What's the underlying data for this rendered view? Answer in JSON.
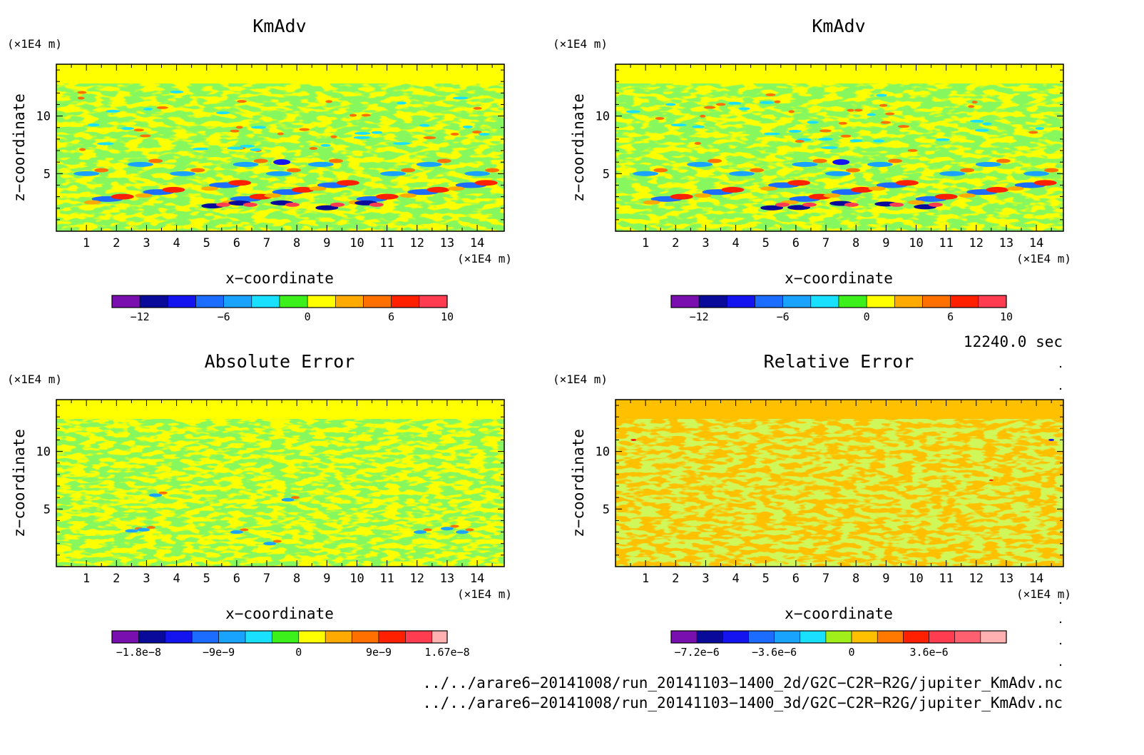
{
  "panels": [
    {
      "title": "KmAdv",
      "unit_y": "(×1E4 m)",
      "unit_x": "(×1E4 m)",
      "xlabel": "x−coordinate",
      "ylabel": "z−coordinate",
      "colorbar_ticks": [
        "−12",
        "−6",
        "0",
        "6",
        "10"
      ]
    },
    {
      "title": "KmAdv",
      "unit_y": "(×1E4 m)",
      "unit_x": "(×1E4 m)",
      "xlabel": "x−coordinate",
      "ylabel": "z−coordinate",
      "colorbar_ticks": [
        "−12",
        "−6",
        "0",
        "6",
        "10"
      ]
    },
    {
      "title": "Absolute Error",
      "unit_y": "(×1E4 m)",
      "unit_x": "(×1E4 m)",
      "xlabel": "x−coordinate",
      "ylabel": "z−coordinate",
      "colorbar_ticks": [
        "−1.8e−8",
        "−9e−9",
        "0",
        "9e−9",
        "1.67e−8"
      ]
    },
    {
      "title": "Relative Error",
      "unit_y": "(×1E4 m)",
      "unit_x": "(×1E4 m)",
      "xlabel": "x−coordinate",
      "ylabel": "z−coordinate",
      "colorbar_ticks": [
        "−7.2e−6",
        "−3.6e−6",
        "0",
        "3.6e−6"
      ]
    }
  ],
  "time_label": "12240.0 sec",
  "file_paths": [
    "../../arare6−20141008/run_20141103−1400_2d/G2C−C2R−R2G/jupiter_KmAdv.nc",
    "../../arare6−20141008/run_20141103−1400_3d/G2C−C2R−R2G/jupiter_KmAdv.nc"
  ],
  "chart_data": [
    {
      "type": "heatmap",
      "title": "KmAdv",
      "xlabel": "x−coordinate",
      "ylabel": "z−coordinate",
      "x_unit": "(×1E4 m)",
      "z_unit": "(×1E4 m)",
      "xlim": [
        0,
        14.9
      ],
      "ylim": [
        0,
        14.5
      ],
      "x_ticks": [
        1,
        2,
        3,
        4,
        5,
        6,
        7,
        8,
        9,
        10,
        11,
        12,
        13,
        14
      ],
      "y_ticks": [
        5,
        10
      ],
      "colorbar": {
        "levels": [
          -14,
          -12,
          -10,
          -8,
          -6,
          -4,
          -2,
          0,
          2,
          4,
          6,
          8,
          10
        ],
        "colors": [
          "#7a0fb0",
          "#0a0a9a",
          "#1414f0",
          "#1b6cff",
          "#1aa2ff",
          "#19e0ff",
          "#3cf01c",
          "#ffff00",
          "#ffaa00",
          "#ff7000",
          "#ff2000",
          "#ff3c50"
        ],
        "tick_values": [
          -12,
          -6,
          0,
          6,
          10
        ]
      }
    },
    {
      "type": "heatmap",
      "title": "KmAdv",
      "xlabel": "x−coordinate",
      "ylabel": "z−coordinate",
      "x_unit": "(×1E4 m)",
      "z_unit": "(×1E4 m)",
      "xlim": [
        0,
        14.9
      ],
      "ylim": [
        0,
        14.5
      ],
      "x_ticks": [
        1,
        2,
        3,
        4,
        5,
        6,
        7,
        8,
        9,
        10,
        11,
        12,
        13,
        14
      ],
      "y_ticks": [
        5,
        10
      ],
      "colorbar": {
        "levels": [
          -14,
          -12,
          -10,
          -8,
          -6,
          -4,
          -2,
          0,
          2,
          4,
          6,
          8,
          10
        ],
        "colors": [
          "#7a0fb0",
          "#0a0a9a",
          "#1414f0",
          "#1b6cff",
          "#1aa2ff",
          "#19e0ff",
          "#3cf01c",
          "#ffff00",
          "#ffaa00",
          "#ff7000",
          "#ff2000",
          "#ff3c50"
        ],
        "tick_values": [
          -12,
          -6,
          0,
          6,
          10
        ]
      }
    },
    {
      "type": "heatmap",
      "title": "Absolute Error",
      "xlabel": "x−coordinate",
      "ylabel": "z−coordinate",
      "x_unit": "(×1E4 m)",
      "z_unit": "(×1E4 m)",
      "xlim": [
        0,
        14.9
      ],
      "ylim": [
        0,
        14.5
      ],
      "x_ticks": [
        1,
        2,
        3,
        4,
        5,
        6,
        7,
        8,
        9,
        10,
        11,
        12,
        13,
        14
      ],
      "y_ticks": [
        5,
        10
      ],
      "colorbar": {
        "levels": [
          -2.1e-08,
          -1.8e-08,
          -1.5e-08,
          -1.2e-08,
          -9e-09,
          -6e-09,
          -3e-09,
          0,
          3e-09,
          6e-09,
          9e-09,
          1.2e-08,
          1.5e-08,
          1.67e-08
        ],
        "colors": [
          "#7a0fb0",
          "#0a0a9a",
          "#1414f0",
          "#1b6cff",
          "#1aa2ff",
          "#19e0ff",
          "#3cf01c",
          "#ffff00",
          "#ffaa00",
          "#ff7000",
          "#ff2000",
          "#ff3c50",
          "#ffb0b0"
        ],
        "tick_values": [
          -1.8e-08,
          -9e-09,
          0,
          9e-09,
          1.67e-08
        ]
      }
    },
    {
      "type": "heatmap",
      "title": "Relative Error",
      "xlabel": "x−coordinate",
      "ylabel": "z−coordinate",
      "x_unit": "(×1E4 m)",
      "z_unit": "(×1E4 m)",
      "xlim": [
        0,
        14.9
      ],
      "ylim": [
        0,
        14.5
      ],
      "x_ticks": [
        1,
        2,
        3,
        4,
        5,
        6,
        7,
        8,
        9,
        10,
        11,
        12,
        13,
        14
      ],
      "y_ticks": [
        5,
        10
      ],
      "colorbar": {
        "levels": [
          -8.4e-06,
          -7.2e-06,
          -6e-06,
          -4.8e-06,
          -3.6e-06,
          -2.4e-06,
          -1.2e-06,
          0,
          1.2e-06,
          2.4e-06,
          3.6e-06,
          4.8e-06,
          6e-06,
          7.2e-06
        ],
        "colors": [
          "#7a0fb0",
          "#0a0a9a",
          "#1414f0",
          "#1b6cff",
          "#1aa2ff",
          "#19e0ff",
          "#a0ee1a",
          "#ffc000",
          "#ff7800",
          "#ff2000",
          "#ff3c50",
          "#ff6070",
          "#ffb0b0"
        ],
        "tick_values": [
          -7.2e-06,
          -3.6e-06,
          0,
          3.6e-06
        ]
      }
    }
  ]
}
